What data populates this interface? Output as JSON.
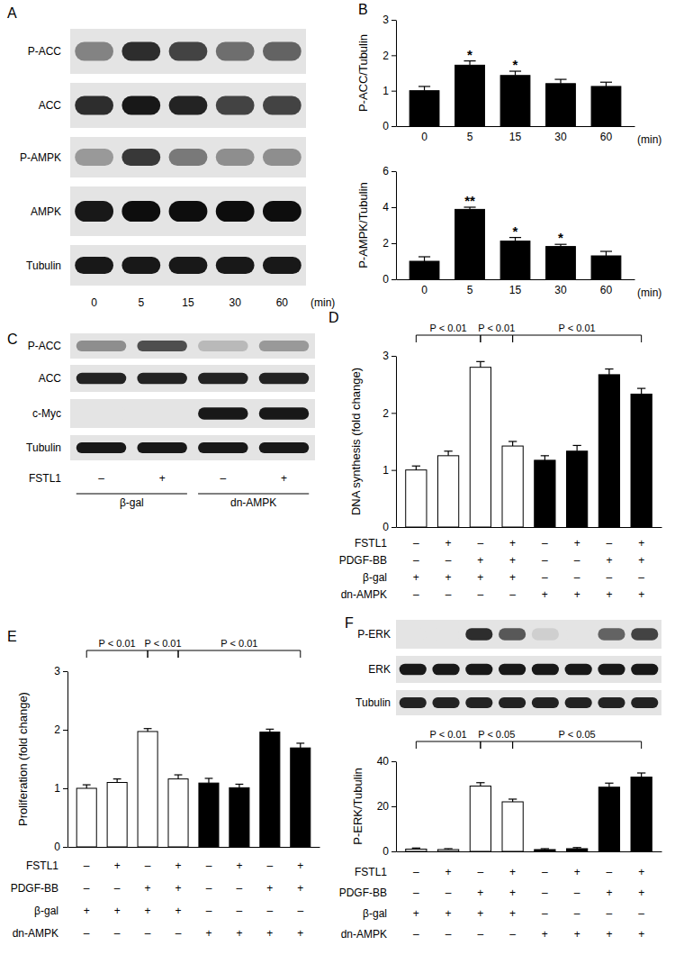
{
  "chart_data": [
    {
      "type": "bar",
      "panel": "B",
      "ylabel": "P-ACC/Tubulin",
      "categories": [
        "0",
        "5",
        "15",
        "30",
        "60"
      ],
      "xlabel": "(min)",
      "values": [
        1.0,
        1.72,
        1.43,
        1.2,
        1.12
      ],
      "errors": [
        0.12,
        0.12,
        0.12,
        0.12,
        0.12
      ],
      "color": "#000000",
      "ylim": [
        0,
        3
      ],
      "yticks": [
        0,
        1,
        2,
        3
      ],
      "annotations": [
        {
          "index": 1,
          "text": "*"
        },
        {
          "index": 2,
          "text": "*"
        }
      ]
    },
    {
      "type": "bar",
      "ylabel": "P-AMPK/Tubulin",
      "categories": [
        "0",
        "5",
        "15",
        "30",
        "60"
      ],
      "xlabel": "(min)",
      "values": [
        1.0,
        3.88,
        2.12,
        1.82,
        1.3
      ],
      "errors": [
        0.25,
        0.12,
        0.2,
        0.12,
        0.25
      ],
      "color": "#000000",
      "ylim": [
        0,
        6
      ],
      "yticks": [
        0,
        2,
        4,
        6
      ],
      "annotations": [
        {
          "index": 1,
          "text": "**"
        },
        {
          "index": 2,
          "text": "*"
        },
        {
          "index": 3,
          "text": "*"
        }
      ]
    },
    {
      "type": "bar",
      "panel": "D",
      "ylabel": "DNA synthesis (fold change)",
      "categories": [
        null,
        null,
        null,
        null,
        null,
        null,
        null,
        null
      ],
      "values": [
        1.0,
        1.25,
        2.8,
        1.42,
        1.17,
        1.33,
        2.67,
        2.33
      ],
      "errors": [
        0.07,
        0.08,
        0.1,
        0.08,
        0.08,
        0.1,
        0.1,
        0.1
      ],
      "colors": [
        "#ffffff",
        "#ffffff",
        "#ffffff",
        "#ffffff",
        "#000000",
        "#000000",
        "#000000",
        "#000000"
      ],
      "ylim": [
        0,
        3
      ],
      "yticks": [
        0,
        1,
        2,
        3
      ],
      "brackets": [
        {
          "from": 0,
          "to": 2,
          "text": "P < 0.01"
        },
        {
          "from": 2,
          "to": 3,
          "text": "P < 0.01"
        },
        {
          "from": 3,
          "to": 7,
          "text": "P < 0.01"
        }
      ],
      "conditions": [
        {
          "label": "FSTL1",
          "values": [
            "–",
            "+",
            "–",
            "+",
            "–",
            "+",
            "–",
            "+"
          ]
        },
        {
          "label": "PDGF-BB",
          "values": [
            "–",
            "–",
            "+",
            "+",
            "–",
            "–",
            "+",
            "+"
          ]
        },
        {
          "label": "β-gal",
          "values": [
            "+",
            "+",
            "+",
            "+",
            "–",
            "–",
            "–",
            "–"
          ]
        },
        {
          "label": "dn-AMPK",
          "values": [
            "–",
            "–",
            "–",
            "–",
            "+",
            "+",
            "+",
            "+"
          ]
        }
      ]
    },
    {
      "type": "bar",
      "panel": "E",
      "ylabel": "Proliferation (fold change)",
      "categories": [
        null,
        null,
        null,
        null,
        null,
        null,
        null,
        null
      ],
      "values": [
        1.0,
        1.1,
        1.97,
        1.16,
        1.09,
        1.01,
        1.96,
        1.69
      ],
      "errors": [
        0.06,
        0.06,
        0.05,
        0.07,
        0.08,
        0.06,
        0.05,
        0.08
      ],
      "colors": [
        "#ffffff",
        "#ffffff",
        "#ffffff",
        "#ffffff",
        "#000000",
        "#000000",
        "#000000",
        "#000000"
      ],
      "ylim": [
        0,
        3
      ],
      "yticks": [
        0,
        1,
        2,
        3
      ],
      "brackets": [
        {
          "from": 0,
          "to": 2,
          "text": "P < 0.01"
        },
        {
          "from": 2,
          "to": 3,
          "text": "P < 0.01"
        },
        {
          "from": 3,
          "to": 7,
          "text": "P < 0.01"
        }
      ],
      "conditions": [
        {
          "label": "FSTL1",
          "values": [
            "–",
            "+",
            "–",
            "+",
            "–",
            "+",
            "–",
            "+"
          ]
        },
        {
          "label": "PDGF-BB",
          "values": [
            "–",
            "–",
            "+",
            "+",
            "–",
            "–",
            "+",
            "+"
          ]
        },
        {
          "label": "β-gal",
          "values": [
            "+",
            "+",
            "+",
            "+",
            "–",
            "–",
            "–",
            "–"
          ]
        },
        {
          "label": "dn-AMPK",
          "values": [
            "–",
            "–",
            "–",
            "–",
            "+",
            "+",
            "+",
            "+"
          ]
        }
      ]
    },
    {
      "type": "bar",
      "ylabel": "P-ERK/Tubulin",
      "categories": [
        null,
        null,
        null,
        null,
        null,
        null,
        null,
        null
      ],
      "values": [
        1.0,
        0.8,
        29,
        22,
        0.8,
        1.2,
        28.5,
        33
      ],
      "errors": [
        0.5,
        0.4,
        1.5,
        1.2,
        0.4,
        0.5,
        1.8,
        1.8
      ],
      "colors": [
        "#ffffff",
        "#ffffff",
        "#ffffff",
        "#ffffff",
        "#000000",
        "#000000",
        "#000000",
        "#000000"
      ],
      "ylim": [
        0,
        40
      ],
      "yticks": [
        0,
        20,
        40
      ],
      "brackets": [
        {
          "from": 0,
          "to": 2,
          "text": "P < 0.01"
        },
        {
          "from": 2,
          "to": 3,
          "text": "P < 0.05"
        },
        {
          "from": 3,
          "to": 7,
          "text": "P < 0.05"
        }
      ],
      "conditions": [
        {
          "label": "FSTL1",
          "values": [
            "–",
            "+",
            "–",
            "+",
            "–",
            "+",
            "–",
            "+"
          ]
        },
        {
          "label": "PDGF-BB",
          "values": [
            "–",
            "–",
            "+",
            "+",
            "–",
            "–",
            "+",
            "+"
          ]
        },
        {
          "label": "β-gal",
          "values": [
            "+",
            "+",
            "+",
            "+",
            "–",
            "–",
            "–",
            "–"
          ]
        },
        {
          "label": "dn-AMPK",
          "values": [
            "–",
            "–",
            "–",
            "–",
            "+",
            "+",
            "+",
            "+"
          ]
        }
      ]
    }
  ],
  "blots": [
    {
      "panel": "A",
      "rows": [
        {
          "label": "P-ACC",
          "bands": [
            0.45,
            0.85,
            0.75,
            0.55,
            0.6
          ]
        },
        {
          "label": "ACC",
          "bands": [
            0.85,
            0.95,
            0.9,
            0.75,
            0.75
          ]
        },
        {
          "label": "P-AMPK",
          "bands": [
            0.35,
            0.8,
            0.5,
            0.4,
            0.4
          ]
        },
        {
          "label": "AMPK",
          "bands": [
            0.95,
            1,
            1,
            1,
            1
          ]
        },
        {
          "label": "Tubulin",
          "bands": [
            0.95,
            0.95,
            0.95,
            0.95,
            0.95
          ]
        }
      ],
      "lanes": [
        "0",
        "5",
        "15",
        "30",
        "60"
      ],
      "lanes_label": "(min)"
    },
    {
      "panel": "C",
      "rows": [
        {
          "label": "P-ACC",
          "bands": [
            0.4,
            0.7,
            0.2,
            0.35
          ]
        },
        {
          "label": "ACC",
          "bands": [
            0.9,
            0.9,
            0.9,
            0.9
          ]
        },
        {
          "label": "c-Myc",
          "bands": [
            0,
            0,
            0.95,
            0.95
          ]
        },
        {
          "label": "Tubulin",
          "bands": [
            0.95,
            0.95,
            0.95,
            0.95
          ]
        }
      ],
      "conditions": [
        {
          "label": "FSTL1",
          "values": [
            "–",
            "+",
            "–",
            "+"
          ]
        }
      ],
      "groups": [
        {
          "label": "β-gal",
          "from": 0,
          "to": 1
        },
        {
          "label": "dn-AMPK",
          "from": 2,
          "to": 3
        }
      ]
    },
    {
      "panel": "F",
      "rows": [
        {
          "label": "P-ERK",
          "bands": [
            0,
            0,
            0.85,
            0.65,
            0.1,
            0,
            0.6,
            0.75
          ]
        },
        {
          "label": "ERK",
          "bands": [
            0.95,
            0.95,
            0.95,
            0.95,
            0.95,
            0.95,
            0.95,
            0.95
          ]
        },
        {
          "label": "Tubulin",
          "bands": [
            0.9,
            0.9,
            0.9,
            0.9,
            0.9,
            0.9,
            0.9,
            0.9
          ]
        }
      ]
    }
  ]
}
